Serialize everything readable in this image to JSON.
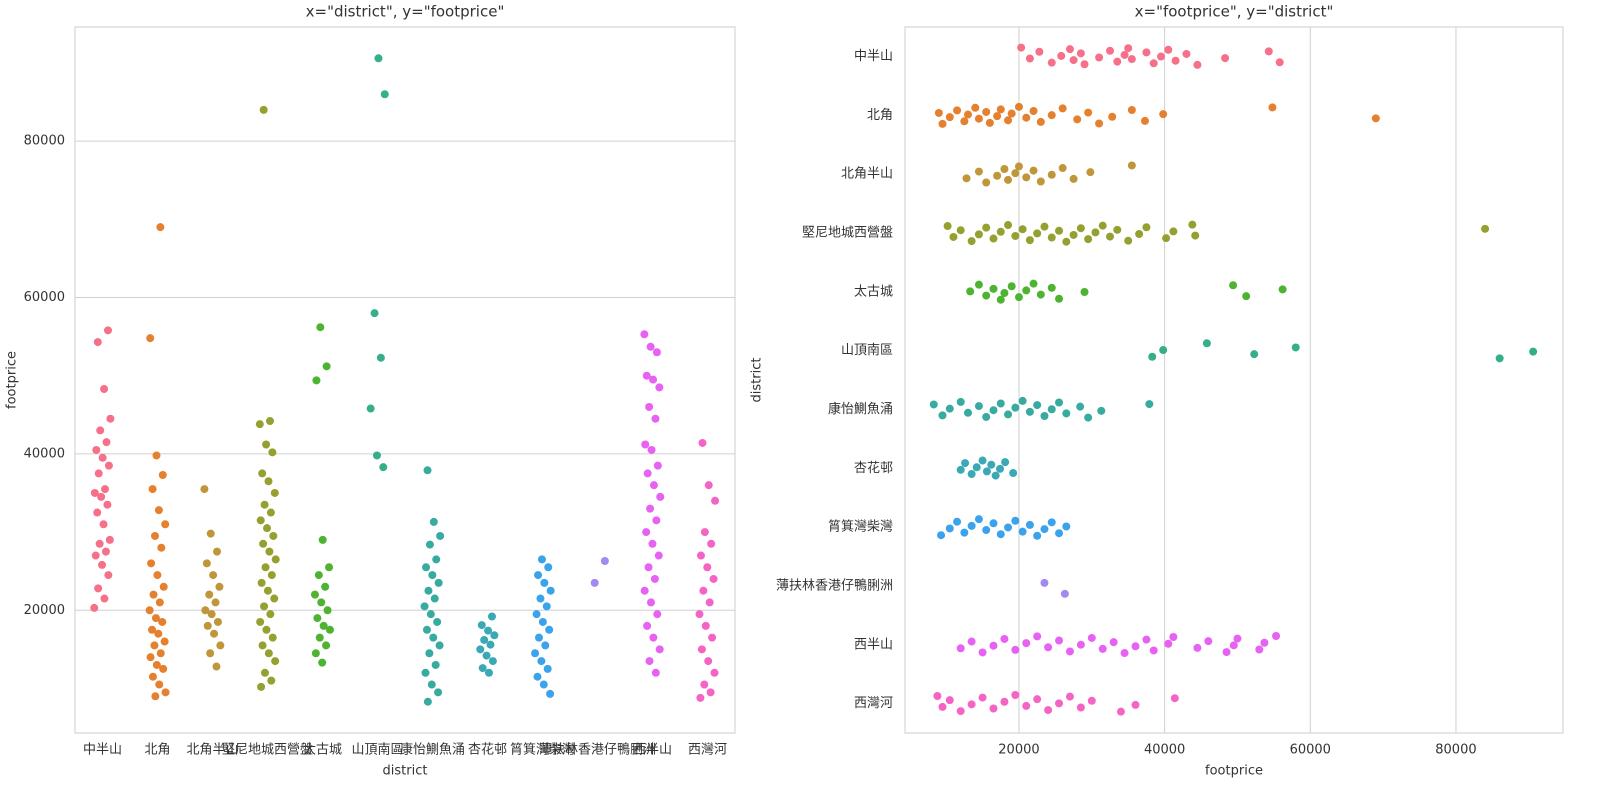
{
  "chart_data": [
    {
      "type": "strip",
      "orient": "v",
      "title": "x=\"district\", y=\"footprice\"",
      "x_label": "district",
      "y_label": "footprice",
      "categories": [
        "中半山",
        "北角",
        "北角半山",
        "堅尼地城西營盤",
        "太古城",
        "山頂南區",
        "康怡鰂魚涌",
        "杏花邨",
        "筲箕灣柴灣",
        "薄扶林香港仔鴨脷洲",
        "西半山",
        "西灣河"
      ],
      "colors": [
        "#f6708a",
        "#e5802f",
        "#c0963a",
        "#96a030",
        "#4eb331",
        "#35ae8b",
        "#37ab9f",
        "#3aa9b5",
        "#3ba3ec",
        "#a28af0",
        "#e762f2",
        "#f564c5"
      ],
      "values": [
        [
          20300,
          21500,
          22800,
          24500,
          25800,
          27000,
          27500,
          28500,
          29000,
          31000,
          32500,
          33500,
          34500,
          35000,
          35500,
          37500,
          38500,
          39500,
          40500,
          41500,
          43000,
          44500,
          48300,
          54300,
          55800
        ],
        [
          9000,
          9500,
          10500,
          11500,
          12500,
          13000,
          14000,
          14500,
          15500,
          16000,
          17000,
          17500,
          18500,
          19000,
          20000,
          21000,
          22000,
          23000,
          24500,
          26000,
          28000,
          29500,
          31000,
          32800,
          35500,
          37300,
          39800,
          54800,
          69000
        ],
        [
          12800,
          14500,
          15500,
          17000,
          18000,
          18500,
          19500,
          20000,
          21000,
          22000,
          23000,
          24500,
          26000,
          27500,
          29800,
          35500
        ],
        [
          10200,
          11000,
          12000,
          13500,
          14500,
          15500,
          16500,
          17500,
          18500,
          19500,
          20500,
          21500,
          22500,
          23500,
          24500,
          25500,
          26500,
          27500,
          28500,
          29500,
          30500,
          31500,
          32500,
          33500,
          35000,
          36500,
          37500,
          40200,
          41200,
          43800,
          44200,
          84000
        ],
        [
          13300,
          14500,
          15500,
          16500,
          17500,
          18000,
          19000,
          20000,
          21000,
          22000,
          23000,
          24500,
          25500,
          29000,
          49400,
          51200,
          56200
        ],
        [
          38300,
          39800,
          45800,
          52300,
          58000,
          86000,
          90600
        ],
        [
          8300,
          9500,
          10500,
          12000,
          13000,
          14500,
          15500,
          16500,
          17500,
          18500,
          19500,
          20500,
          21500,
          22500,
          23500,
          24500,
          25500,
          26500,
          28400,
          29500,
          31300,
          37900
        ],
        [
          12000,
          12600,
          13500,
          14200,
          15000,
          15600,
          16200,
          16800,
          17400,
          18100,
          19200
        ],
        [
          9300,
          10500,
          11500,
          12500,
          13500,
          14500,
          15500,
          16500,
          17500,
          18500,
          19500,
          20500,
          21500,
          22500,
          23500,
          24500,
          25500,
          26500
        ],
        [
          23500,
          26300
        ],
        [
          12000,
          13500,
          15000,
          16500,
          18000,
          19500,
          21000,
          22500,
          24000,
          25500,
          27000,
          28500,
          30000,
          31500,
          33000,
          34500,
          36000,
          37500,
          38500,
          40500,
          41200,
          44500,
          46000,
          48500,
          49500,
          50000,
          53000,
          53700,
          55300
        ],
        [
          8800,
          9500,
          10500,
          12000,
          13500,
          15000,
          16500,
          18000,
          19500,
          21000,
          22500,
          24000,
          25500,
          27000,
          28500,
          30000,
          34000,
          36000,
          41400
        ]
      ],
      "ylim": [
        4300,
        94600
      ],
      "yticks": [
        20000,
        40000,
        60000,
        80000
      ],
      "grid": true
    },
    {
      "type": "strip",
      "orient": "h",
      "title": "x=\"footprice\", y=\"district\"",
      "x_label": "footprice",
      "y_label": "district",
      "categories": [
        "中半山",
        "北角",
        "北角半山",
        "堅尼地城西營盤",
        "太古城",
        "山頂南區",
        "康怡鰂魚涌",
        "杏花邨",
        "筲箕灣柴灣",
        "薄扶林香港仔鴨脷洲",
        "西半山",
        "西灣河"
      ],
      "colors": [
        "#f6708a",
        "#e5802f",
        "#c0963a",
        "#96a030",
        "#4eb331",
        "#35ae8b",
        "#37ab9f",
        "#3aa9b5",
        "#3ba3ec",
        "#a28af0",
        "#e762f2",
        "#f564c5"
      ],
      "values": [
        [
          20300,
          21500,
          22800,
          24500,
          25800,
          27000,
          27500,
          28500,
          29000,
          31000,
          32500,
          33500,
          34500,
          35000,
          35500,
          37500,
          38500,
          39500,
          40500,
          41500,
          43000,
          44500,
          48300,
          54300,
          55800
        ],
        [
          9000,
          9500,
          10500,
          11500,
          12500,
          13000,
          14000,
          14500,
          15500,
          16000,
          17000,
          17500,
          18500,
          19000,
          20000,
          21000,
          22000,
          23000,
          24500,
          26000,
          28000,
          29500,
          31000,
          32800,
          35500,
          37300,
          39800,
          54800,
          69000
        ],
        [
          12800,
          14500,
          15500,
          17000,
          18000,
          18500,
          19500,
          20000,
          21000,
          22000,
          23000,
          24500,
          26000,
          27500,
          29800,
          35500
        ],
        [
          10200,
          11000,
          12000,
          13500,
          14500,
          15500,
          16500,
          17500,
          18500,
          19500,
          20500,
          21500,
          22500,
          23500,
          24500,
          25500,
          26500,
          27500,
          28500,
          29500,
          30500,
          31500,
          32500,
          33500,
          35000,
          36500,
          37500,
          40200,
          41200,
          43800,
          44200,
          84000
        ],
        [
          13300,
          14500,
          15500,
          16500,
          17500,
          18000,
          19000,
          20000,
          21000,
          22000,
          23000,
          24500,
          25500,
          29000,
          49400,
          51200,
          56200
        ],
        [
          38300,
          39800,
          45800,
          52300,
          58000,
          86000,
          90600
        ],
        [
          8300,
          9500,
          10500,
          12000,
          13000,
          14500,
          15500,
          16500,
          17500,
          18500,
          19500,
          20500,
          21500,
          22500,
          23500,
          24500,
          25500,
          26500,
          28400,
          29500,
          31300,
          37900
        ],
        [
          12000,
          12600,
          13500,
          14200,
          15000,
          15600,
          16200,
          16800,
          17400,
          18100,
          19200
        ],
        [
          9300,
          10500,
          11500,
          12500,
          13500,
          14500,
          15500,
          16500,
          17500,
          18500,
          19500,
          20500,
          21500,
          22500,
          23500,
          24500,
          25500,
          26500
        ],
        [
          23500,
          26300
        ],
        [
          12000,
          13500,
          15000,
          16500,
          18000,
          19500,
          21000,
          22500,
          24000,
          25500,
          27000,
          28500,
          30000,
          31500,
          33000,
          34500,
          36000,
          37500,
          38500,
          40500,
          41200,
          44500,
          46000,
          48500,
          49500,
          50000,
          53000,
          53700,
          55300
        ],
        [
          8800,
          9500,
          10500,
          12000,
          13500,
          15000,
          16500,
          18000,
          19500,
          21000,
          22500,
          24000,
          25500,
          27000,
          28500,
          30000,
          34000,
          36000,
          41400
        ]
      ],
      "xlim": [
        4350,
        94700
      ],
      "xticks": [
        20000,
        40000,
        60000,
        80000
      ],
      "grid": true
    }
  ]
}
